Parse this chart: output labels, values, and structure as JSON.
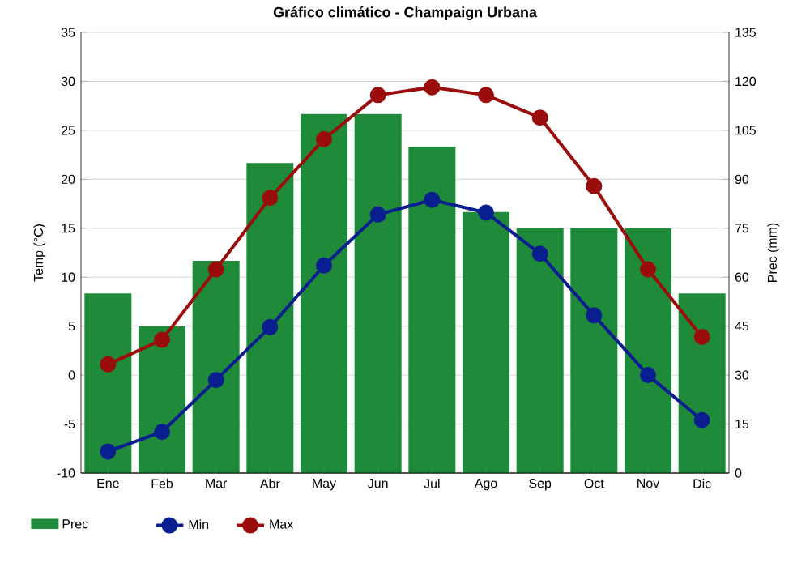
{
  "chart_data": {
    "type": "line",
    "title": "Gráfico climático - Champaign Urbana",
    "ylabel": "Temp (°C)",
    "y2label": "Prec (mm)",
    "categories": [
      "Ene",
      "Feb",
      "Mar",
      "Abr",
      "May",
      "Jun",
      "Jul",
      "Ago",
      "Sep",
      "Oct",
      "Nov",
      "Dic"
    ],
    "series": [
      {
        "name": "Prec",
        "type": "bar",
        "axis": "y2",
        "color": "#1e8a3a",
        "values": [
          55,
          45,
          65,
          95,
          110,
          110,
          100,
          80,
          75,
          75,
          75,
          55
        ]
      },
      {
        "name": "Min",
        "color": "#0a1f8f",
        "values": [
          -7.8,
          -5.8,
          -0.5,
          4.9,
          11.2,
          16.4,
          17.9,
          16.6,
          12.4,
          6.1,
          0.0,
          -4.6
        ]
      },
      {
        "name": "Max",
        "color": "#9b0d0d",
        "values": [
          1.1,
          3.6,
          10.8,
          18.1,
          24.1,
          28.6,
          29.4,
          28.6,
          26.3,
          19.3,
          10.8,
          3.9
        ]
      }
    ],
    "ylim": [
      -10,
      35
    ],
    "yticks": [
      -10,
      -5,
      0,
      5,
      10,
      15,
      20,
      25,
      30,
      35
    ],
    "y2lim": [
      0,
      135
    ],
    "y2ticks": [
      0,
      15,
      30,
      45,
      60,
      75,
      90,
      105,
      120,
      135
    ],
    "grid": "y",
    "legend": "bottom",
    "marker": "circle",
    "line_style": "solid"
  }
}
